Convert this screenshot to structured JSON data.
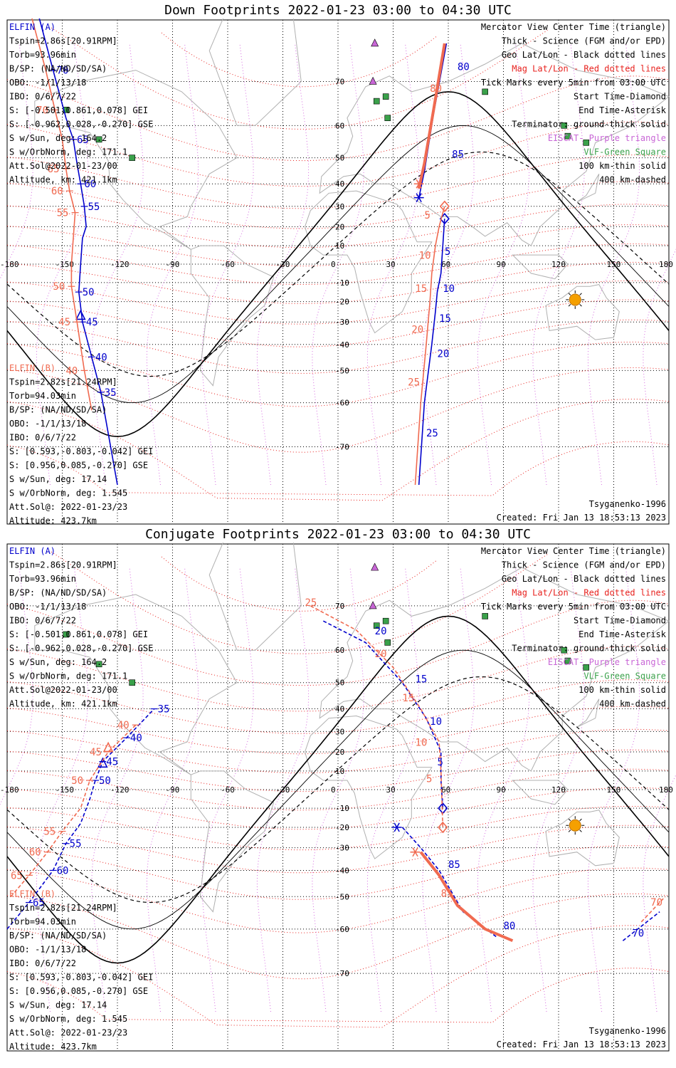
{
  "panels": [
    {
      "title": "Down Footprints 2022-01-23 03:00 to 04:30 UTC",
      "legend_right": [
        {
          "text": "Mercator View Center Time (triangle)",
          "color": "#000000"
        },
        {
          "text": "Thick - Science (FGM and/or EPD)",
          "color": "#000000"
        },
        {
          "text": "Geo Lat/Lon - Black dotted lines",
          "color": "#000000"
        },
        {
          "text": "Mag Lat/Lon - Red dotted lines",
          "color": "#e8231f"
        },
        {
          "text": "Tick Marks every 5min from 03:00 UTC",
          "color": "#000000"
        },
        {
          "text": "Start Time-Diamond",
          "color": "#000000"
        },
        {
          "text": "End Time-Asterisk",
          "color": "#000000"
        },
        {
          "text": "Terminator: ground-thick solid",
          "color": "#000000"
        },
        {
          "text": "EISCAT- Purple triangle",
          "color": "#c866d6"
        },
        {
          "text": "VLF-Green Square",
          "color": "#3aa14a"
        },
        {
          "text": "100 km-thin solid",
          "color": "#000000"
        },
        {
          "text": "400 km-dashed",
          "color": "#000000"
        }
      ],
      "elfin_a": [
        "ELFIN (A)",
        "Tspin=2.86s[20.91RPM]",
        "Torb=93.96min",
        "B/SP: (NA/ND/SD/SA)",
        "OBO: -1/1/13/18",
        "IBO: 0/6/7/22",
        "S: [-0.501,0.861,0.078] GEI",
        "S: [-0.962,0.028,-0.270] GSE",
        "S w/Sun, deg: 164.2",
        "S w/OrbNorm, deg: 171.1",
        "Att.Sol@2022-01-23/00",
        "Altitude, km: 421.1km"
      ],
      "elfin_b": [
        "ELFIN (B)",
        "Tspin=2.82s[21.24RPM]",
        "Torb=94.03min",
        "B/SP: (NA/ND/SD/SA)",
        "OBO: -1/1/13/18",
        "IBO: 0/6/7/22",
        "S: [0.593,-0.803,-0.042] GEI",
        "S: [0.956,0.085,-0.270] GSE",
        "S w/Sun, deg: 17.14",
        "S w/OrbNorm, deg: 1.545",
        "Att.Sol@: 2022-01-23/23",
        "Altitude: 423.7km"
      ],
      "model": "Tsyganenko-1996",
      "created": "Created: Fri Jan 13 18:53:13 2023"
    },
    {
      "title": "Conjugate Footprints 2022-01-23 03:00 to 04:30 UTC",
      "legend_right": [
        {
          "text": "Mercator View Center Time (triangle)",
          "color": "#000000"
        },
        {
          "text": "Thick - Science (FGM and/or EPD)",
          "color": "#000000"
        },
        {
          "text": "Geo Lat/Lon - Black dotted lines",
          "color": "#000000"
        },
        {
          "text": "Mag Lat/Lon - Red dotted lines",
          "color": "#e8231f"
        },
        {
          "text": "Tick Marks every 5min from 03:00 UTC",
          "color": "#000000"
        },
        {
          "text": "Start Time-Diamond",
          "color": "#000000"
        },
        {
          "text": "End Time-Asterisk",
          "color": "#000000"
        },
        {
          "text": "Terminator: ground-thick solid",
          "color": "#000000"
        },
        {
          "text": "EISCAT- Purple triangle",
          "color": "#c866d6"
        },
        {
          "text": "VLF-Green Square",
          "color": "#3aa14a"
        },
        {
          "text": "100 km-thin solid",
          "color": "#000000"
        },
        {
          "text": "400 km-dashed",
          "color": "#000000"
        }
      ],
      "elfin_a": [
        "ELFIN (A)",
        "Tspin=2.86s[20.91RPM]",
        "Torb=93.96min",
        "B/SP: (NA/ND/SD/SA)",
        "OBO: -1/1/13/18",
        "IBO: 0/6/7/22",
        "S: [-0.501,0.861,0.078] GEI",
        "S: [-0.962,0.028,-0.270] GSE",
        "S w/Sun, deg: 164.2",
        "S w/OrbNorm, deg: 171.1",
        "Att.Sol@2022-01-23/00",
        "Altitude, km: 421.1km"
      ],
      "elfin_b": [
        "ELFIN (B)",
        "Tspin=2.82s[21.24RPM]",
        "Torb=94.03min",
        "B/SP: (NA/ND/SD/SA)",
        "OBO: -1/1/13/18",
        "IBO: 0/6/7/22",
        "S: [0.593,-0.803,-0.042] GEI",
        "S: [0.956,0.085,-0.270] GSE",
        "S w/Sun, deg: 17.14",
        "S w/OrbNorm, deg: 1.545",
        "Att.Sol@: 2022-01-23/23",
        "Altitude: 423.7km"
      ],
      "model": "Tsyganenko-1996",
      "created": "Created: Fri Jan 13 18:53:13 2023"
    }
  ],
  "colors": {
    "elfin_a": "#0000cc",
    "elfin_b": "#f06a50",
    "mag_grid": "#e8231f",
    "geo_grid": "#000000",
    "eiscat": "#c866d6",
    "vlf": "#3aa14a",
    "sun": "#f5a000",
    "coast": "#b0b0b0"
  },
  "chart_data": [
    {
      "type": "scatter",
      "projection": "mercator",
      "title": "Down Footprints 2022-01-23 03:00 to 04:30 UTC",
      "lon_ticks": [
        "-180",
        "-150",
        "-120",
        "-90",
        "-60",
        "-30",
        "0",
        "30",
        "60",
        "90",
        "120",
        "150",
        "180"
      ],
      "lat_ticks": [
        "-70",
        "-60",
        "-50",
        "-40",
        "-30",
        "-20",
        "-10",
        "0",
        "10",
        "20",
        "30",
        "40",
        "50",
        "60",
        "70"
      ],
      "xlim": [
        -180,
        180
      ],
      "ylim": [
        -78,
        78
      ],
      "eiscat": [
        [
          20,
          76
        ],
        [
          19,
          70
        ]
      ],
      "vlf": [
        [
          26,
          67
        ],
        [
          27,
          62
        ],
        [
          21,
          66
        ],
        [
          -148,
          64
        ],
        [
          -130,
          56
        ],
        [
          -112,
          50
        ],
        [
          80,
          68
        ],
        [
          123,
          60
        ],
        [
          125,
          57
        ],
        [
          135,
          55
        ]
      ],
      "sun": [
        129,
        -19
      ],
      "series": [
        {
          "name": "ELFIN (A)",
          "color": "#0000cc",
          "dash": false,
          "points": [
            [
              -164,
              80,
              ""
            ],
            [
              -155,
              72,
              "70"
            ],
            [
              -148,
              62,
              ""
            ],
            [
              -144,
              56,
              "65"
            ],
            [
              -142,
              48,
              ""
            ],
            [
              -140,
              40,
              "60"
            ],
            [
              -138,
              30,
              "55"
            ],
            [
              -137,
              20,
              ""
            ],
            [
              -139,
              14,
              ""
            ],
            [
              -140,
              0,
              ""
            ],
            [
              -141,
              -15,
              "50"
            ],
            [
              -139,
              -30,
              "45"
            ],
            [
              -134,
              -45,
              "40"
            ],
            [
              -129,
              -57,
              "35"
            ],
            [
              -120,
              -76,
              ""
            ]
          ],
          "segments": [
            [
              [
                59,
                76
              ],
              [
                52,
                63
              ],
              [
                47,
                45
              ],
              [
                44,
                34
              ]
            ]
          ],
          "seg_labels": [
            [
              65,
              72,
              "80"
            ],
            [
              62,
              50,
              "85"
            ]
          ],
          "start": [
            58,
            24
          ],
          "end": [
            44,
            34
          ],
          "tri": [
            -140,
            -27
          ],
          "south": [
            [
              58,
              24
            ],
            [
              57,
              10
            ],
            [
              56,
              -5
            ],
            [
              54,
              -15
            ],
            [
              53,
              -25
            ],
            [
              51,
              -40
            ],
            [
              47,
              -60
            ],
            [
              44,
              -76
            ]
          ],
          "south_labels": [
            [
              58,
              5,
              "5"
            ],
            [
              57,
              -15,
              "10"
            ],
            [
              55,
              -30,
              "15"
            ],
            [
              54,
              -45,
              "20"
            ],
            [
              48,
              -68,
              "25"
            ]
          ]
        },
        {
          "name": "ELFIN (B)",
          "color": "#f06a50",
          "dash": false,
          "points": [
            [
              -168,
              80,
              "5"
            ],
            [
              -159,
              72,
              ""
            ],
            [
              -154,
              64,
              "70"
            ],
            [
              -150,
              56,
              ""
            ],
            [
              -148,
              46,
              "65"
            ],
            [
              -146,
              37,
              "60"
            ],
            [
              -143,
              27,
              "55"
            ],
            [
              -144,
              14,
              ""
            ],
            [
              -145,
              0,
              ""
            ],
            [
              -145,
              -12,
              "50"
            ],
            [
              -142,
              -30,
              "45"
            ],
            [
              -138,
              -50,
              "40"
            ],
            [
              -134,
              -62,
              ""
            ]
          ],
          "segments": [
            [
              [
                58,
                76
              ],
              [
                52,
                64
              ],
              [
                47,
                48
              ],
              [
                44,
                38
              ]
            ]
          ],
          "seg_labels": [
            [
              50,
              68,
              "80"
            ]
          ],
          "start": [
            58,
            30
          ],
          "end": [
            44,
            40
          ],
          "south": [
            [
              58,
              30
            ],
            [
              55,
              20
            ],
            [
              53,
              10
            ],
            [
              51,
              -5
            ],
            [
              50,
              -20
            ],
            [
              48,
              -40
            ],
            [
              45,
              -60
            ],
            [
              42,
              -76
            ]
          ],
          "south_labels": [
            [
              47,
              24,
              "5"
            ],
            [
              44,
              3,
              "10"
            ],
            [
              42,
              -15,
              "15"
            ],
            [
              40,
              -35,
              "20"
            ],
            [
              38,
              -55,
              "25"
            ]
          ]
        }
      ],
      "terminator": "sinusoid"
    },
    {
      "type": "scatter",
      "projection": "mercator",
      "title": "Conjugate Footprints 2022-01-23 03:00 to 04:30 UTC",
      "lon_ticks": [
        "-180",
        "-150",
        "-120",
        "-90",
        "-60",
        "-30",
        "0",
        "30",
        "60",
        "90",
        "120",
        "150",
        "180"
      ],
      "lat_ticks": [
        "-70",
        "-60",
        "-50",
        "-40",
        "-30",
        "-20",
        "-10",
        "0",
        "10",
        "20",
        "30",
        "40",
        "50",
        "60",
        "70"
      ],
      "xlim": [
        -180,
        180
      ],
      "ylim": [
        -78,
        78
      ],
      "eiscat": [
        [
          20,
          76
        ],
        [
          19,
          70
        ]
      ],
      "vlf": [
        [
          26,
          67
        ],
        [
          27,
          62
        ],
        [
          21,
          66
        ],
        [
          -148,
          64
        ],
        [
          -130,
          56
        ],
        [
          -112,
          50
        ],
        [
          80,
          68
        ],
        [
          123,
          60
        ],
        [
          125,
          57
        ],
        [
          135,
          55
        ]
      ],
      "sun": [
        129,
        -19
      ],
      "series": [
        {
          "name": "ELFIN (A)",
          "color": "#0000cc",
          "dash": true,
          "points": [
            [
              -180,
              -60,
              ""
            ],
            [
              -168,
              -52,
              "65"
            ],
            [
              -155,
              -40,
              "60"
            ],
            [
              -148,
              -28,
              "55"
            ],
            [
              -140,
              -18,
              ""
            ],
            [
              -135,
              -5,
              ""
            ],
            [
              -132,
              5,
              "50"
            ],
            [
              -128,
              15,
              "45"
            ],
            [
              -115,
              27,
              "40"
            ],
            [
              -100,
              40,
              "35"
            ]
          ],
          "segments": [
            [
              [
                -8,
                67
              ],
              [
                15,
                62
              ],
              [
                35,
                50
              ],
              [
                48,
                36
              ],
              [
                56,
                20
              ],
              [
                56,
                5
              ],
              [
                57,
                -10
              ]
            ],
            [
              [
                35,
                -20
              ],
              [
                45,
                -30
              ],
              [
                55,
                -40
              ],
              [
                68,
                -55
              ],
              [
                86,
                -62
              ]
            ]
          ],
          "seg_labels": [
            [
              20,
              64,
              "20"
            ],
            [
              42,
              50,
              "15"
            ],
            [
              50,
              33,
              "10"
            ],
            [
              54,
              13,
              "5"
            ],
            [
              60,
              -39,
              "85"
            ],
            [
              90,
              -60,
              "80"
            ]
          ],
          "start": [
            57,
            -10
          ],
          "end": [
            32,
            -20
          ],
          "tri": [
            -128,
            14
          ],
          "east": [
            [
              155,
              -63
            ],
            [
              175,
              -55
            ]
          ],
          "east_labels": [
            [
              160,
              -62,
              "70"
            ]
          ]
        },
        {
          "name": "ELFIN (B)",
          "color": "#f06a50",
          "dash": true,
          "points": [
            [
              -178,
              -50,
              ""
            ],
            [
              -168,
              -42,
              "65"
            ],
            [
              -158,
              -32,
              "60"
            ],
            [
              -150,
              -22,
              "55"
            ],
            [
              -140,
              -10,
              ""
            ],
            [
              -135,
              5,
              "50"
            ],
            [
              -125,
              20,
              "45"
            ],
            [
              -110,
              33,
              "40"
            ]
          ],
          "segments": [
            [
              [
                -15,
                70
              ],
              [
                10,
                65
              ],
              [
                30,
                55
              ],
              [
                45,
                40
              ],
              [
                55,
                25
              ],
              [
                56,
                10
              ],
              [
                57,
                -20
              ]
            ],
            [
              [
                45,
                -32
              ],
              [
                55,
                -42
              ],
              [
                65,
                -53
              ],
              [
                80,
                -60
              ],
              [
                95,
                -63
              ]
            ]
          ],
          "seg_labels": [
            [
              -18,
              70,
              "25"
            ],
            [
              20,
              58,
              "20"
            ],
            [
              35,
              43,
              "15"
            ],
            [
              42,
              23,
              "10"
            ],
            [
              48,
              4,
              "5"
            ],
            [
              56,
              -50,
              "85"
            ]
          ],
          "start": [
            57,
            -20
          ],
          "end": [
            42,
            -32
          ],
          "tri": [
            -125,
            22
          ],
          "east": [
            [
              165,
              -58
            ],
            [
              178,
              -50
            ]
          ],
          "east_labels": [
            [
              170,
              -53,
              "70"
            ]
          ]
        }
      ],
      "terminator": "sinusoid"
    }
  ]
}
